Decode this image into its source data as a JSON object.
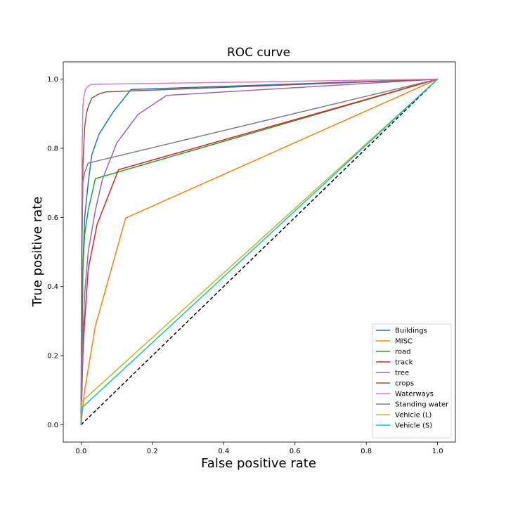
{
  "chart_data": {
    "type": "line",
    "title": "ROC curve",
    "xlabel": "False positive rate",
    "ylabel": "True positive rate",
    "xlim": [
      -0.05,
      1.05
    ],
    "ylim": [
      -0.05,
      1.05
    ],
    "xticks": [
      "0.0",
      "0.2",
      "0.4",
      "0.6",
      "0.8",
      "1.0"
    ],
    "yticks": [
      "0.0",
      "0.2",
      "0.4",
      "0.6",
      "0.8",
      "1.0"
    ],
    "grid": false,
    "legend_position": "lower right",
    "diagonal": {
      "x": [
        0,
        1
      ],
      "y": [
        0,
        1
      ],
      "color": "#000000",
      "style": "dashed"
    },
    "series": [
      {
        "name": "Buildings",
        "color": "#1f77b4",
        "x": [
          0,
          0.005,
          0.01,
          0.02,
          0.03,
          0.05,
          0.09,
          0.14,
          1.0
        ],
        "y": [
          0,
          0.45,
          0.6,
          0.7,
          0.78,
          0.84,
          0.905,
          0.97,
          1.0
        ]
      },
      {
        "name": "MISC",
        "color": "#ff7f0e",
        "x": [
          0,
          0.01,
          0.04,
          0.125,
          1.0
        ],
        "y": [
          0,
          0.1,
          0.285,
          0.598,
          1.0
        ]
      },
      {
        "name": "road",
        "color": "#2ca02c",
        "x": [
          0,
          0.005,
          0.01,
          0.02,
          0.04,
          1.0
        ],
        "y": [
          0,
          0.45,
          0.55,
          0.62,
          0.712,
          1.0
        ]
      },
      {
        "name": "track",
        "color": "#d62728",
        "x": [
          0,
          0.005,
          0.01,
          0.02,
          0.045,
          0.105,
          1.0
        ],
        "y": [
          0,
          0.2,
          0.3,
          0.45,
          0.58,
          0.738,
          1.0
        ]
      },
      {
        "name": "tree",
        "color": "#9467bd",
        "x": [
          0,
          0.005,
          0.01,
          0.02,
          0.04,
          0.06,
          0.1,
          0.16,
          0.24,
          1.0
        ],
        "y": [
          0,
          0.25,
          0.38,
          0.5,
          0.62,
          0.71,
          0.815,
          0.898,
          0.953,
          1.0
        ]
      },
      {
        "name": "crops",
        "color": "#8c564b",
        "x": [
          0,
          0.002,
          0.005,
          0.01,
          0.015,
          0.02,
          0.03,
          0.05,
          0.07,
          1.0
        ],
        "y": [
          0,
          0.45,
          0.75,
          0.86,
          0.9,
          0.92,
          0.945,
          0.957,
          0.963,
          1.0
        ]
      },
      {
        "name": "Waterways",
        "color": "#e377c2",
        "x": [
          0,
          0.001,
          0.003,
          0.005,
          0.008,
          0.012,
          0.02,
          0.03,
          1.0
        ],
        "y": [
          0,
          0.5,
          0.8,
          0.92,
          0.95,
          0.97,
          0.98,
          0.985,
          1.0
        ]
      },
      {
        "name": "Standing water",
        "color": "#7f7f7f",
        "x": [
          0,
          0.002,
          0.005,
          0.01,
          0.02,
          1.0
        ],
        "y": [
          0,
          0.5,
          0.7,
          0.73,
          0.757,
          1.0
        ]
      },
      {
        "name": "Vehicle (L)",
        "color": "#bcbd22",
        "x": [
          0,
          0.001,
          0.003,
          1.0
        ],
        "y": [
          0,
          0.05,
          0.068,
          1.0
        ]
      },
      {
        "name": "Vehicle (S)",
        "color": "#17becf",
        "x": [
          0,
          0.001,
          0.003,
          1.0
        ],
        "y": [
          0,
          0.035,
          0.05,
          1.0
        ]
      }
    ]
  }
}
